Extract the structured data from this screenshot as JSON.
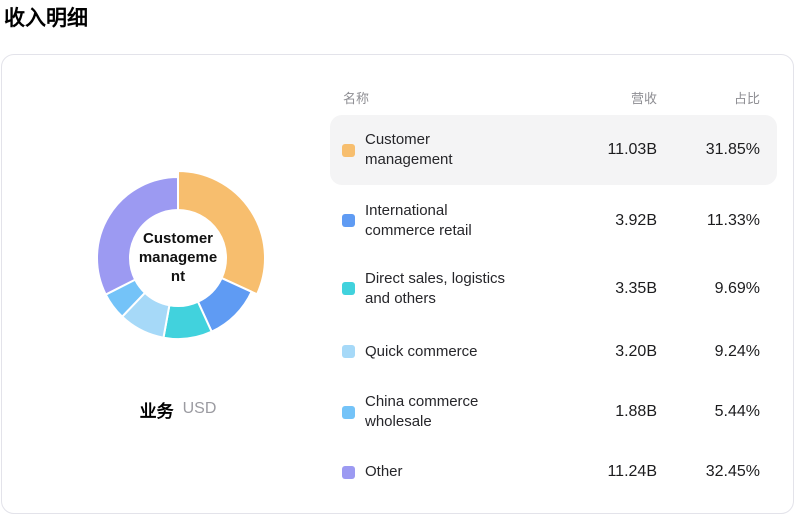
{
  "page_title": "收入明细",
  "chart": {
    "center_label": "Customer management",
    "center_label_lines": [
      "Customer",
      "manageme",
      "nt"
    ],
    "axis_label": "业务",
    "unit_label": "USD"
  },
  "table": {
    "headers": {
      "name": "名称",
      "revenue": "营收",
      "share": "占比"
    },
    "rows": [
      {
        "name": "Customer management",
        "name_lines": [
          "Customer",
          "management"
        ],
        "revenue": "11.03B",
        "share": "31.85%",
        "color": "#f7be6e",
        "highlighted": true
      },
      {
        "name": "International commerce retail",
        "name_lines": [
          "International",
          "commerce retail"
        ],
        "revenue": "3.92B",
        "share": "11.33%",
        "color": "#5f9bf3",
        "highlighted": false
      },
      {
        "name": "Direct sales, logistics and others",
        "name_lines": [
          "Direct sales, logistics",
          "and others"
        ],
        "revenue": "3.35B",
        "share": "9.69%",
        "color": "#41d2dd",
        "highlighted": false
      },
      {
        "name": "Quick commerce",
        "name_lines": [
          "Quick commerce"
        ],
        "revenue": "3.20B",
        "share": "9.24%",
        "color": "#a6d9f8",
        "highlighted": false
      },
      {
        "name": "China commerce wholesale",
        "name_lines": [
          "China commerce",
          "wholesale"
        ],
        "revenue": "1.88B",
        "share": "5.44%",
        "color": "#74c3f8",
        "highlighted": false
      },
      {
        "name": "Other",
        "name_lines": [
          "Other"
        ],
        "revenue": "11.24B",
        "share": "32.45%",
        "color": "#9c9af2",
        "highlighted": false
      }
    ]
  },
  "chart_data": {
    "type": "pie",
    "variant": "donut",
    "title": "收入明细",
    "categories": [
      "Customer management",
      "International commerce retail",
      "Direct sales, logistics and others",
      "Quick commerce",
      "China commerce wholesale",
      "Other"
    ],
    "series": [
      {
        "name": "营收",
        "unit": "B USD",
        "values": [
          11.03,
          3.92,
          3.35,
          3.2,
          1.88,
          11.24
        ]
      }
    ],
    "shares_pct": [
      31.85,
      11.33,
      9.69,
      9.24,
      5.44,
      32.45
    ],
    "colors": [
      "#f7be6e",
      "#5f9bf3",
      "#41d2dd",
      "#a6d9f8",
      "#74c3f8",
      "#9c9af2"
    ],
    "center_label": "Customer management",
    "dimension_label": "业务",
    "unit": "USD",
    "highlighted_index": 0,
    "start_angle_deg": 0,
    "clockwise": true,
    "legend_position": "right-table"
  }
}
